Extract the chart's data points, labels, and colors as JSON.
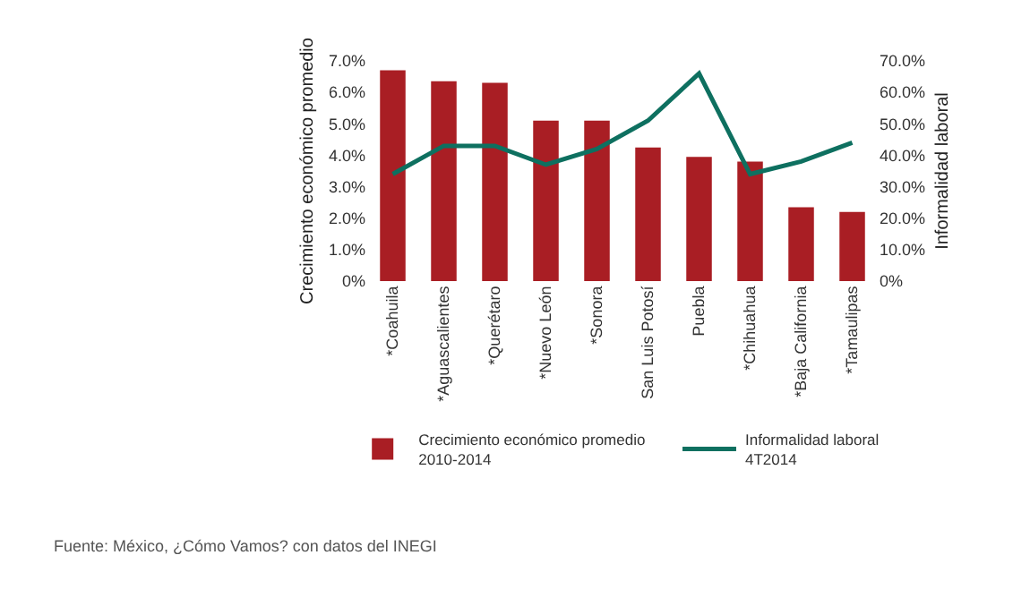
{
  "chart_data": {
    "type": "bar",
    "categories": [
      "*Coahuila",
      "*Aguascalientes",
      "*Querétaro",
      "*Nuevo León",
      "*Sonora",
      "San Luis Potosí",
      "Puebla",
      "*Chihuahua",
      "*Baja California",
      "*Tamaulipas"
    ],
    "series": [
      {
        "name": "Crecimiento económico promedio 2010-2014",
        "color": "#a91e24",
        "values": [
          6.7,
          6.35,
          6.3,
          5.1,
          5.1,
          4.25,
          3.95,
          3.8,
          2.35,
          2.2
        ]
      },
      {
        "name": "Informalidad laboral 4T2014",
        "type": "line",
        "axis": "y2",
        "color": "#0e7060",
        "values": [
          34,
          43,
          43,
          37,
          42,
          51,
          66,
          34,
          38,
          44
        ]
      }
    ],
    "ylabel": "Crecimiento económico promedio",
    "y2label": "Informalidad laboral",
    "ylim": [
      0,
      7
    ],
    "yticks": [
      {
        "value": 0,
        "label": "0%"
      },
      {
        "value": 1,
        "label": "1.0%"
      },
      {
        "value": 2,
        "label": "2.0%"
      },
      {
        "value": 3,
        "label": "3.0%"
      },
      {
        "value": 4,
        "label": "4.0%"
      },
      {
        "value": 5,
        "label": "5.0%"
      },
      {
        "value": 6,
        "label": "6.0%"
      },
      {
        "value": 7,
        "label": "7.0%"
      }
    ],
    "y2lim": [
      0,
      70
    ],
    "y2ticks": [
      {
        "value": 0,
        "label": "0%"
      },
      {
        "value": 10,
        "label": "10.0%"
      },
      {
        "value": 20,
        "label": "20.0%"
      },
      {
        "value": 30,
        "label": "30.0%"
      },
      {
        "value": 40,
        "label": "40.0%"
      },
      {
        "value": 50,
        "label": "50.0%"
      },
      {
        "value": 60,
        "label": "60.0%"
      },
      {
        "value": 70,
        "label": "70.0%"
      }
    ],
    "grid": false,
    "legend": "bottom",
    "marker": "none",
    "line_style": "solid",
    "annotations": [
      "Fuente: México, ¿Cómo Vamos? con datos del INEGI"
    ]
  }
}
